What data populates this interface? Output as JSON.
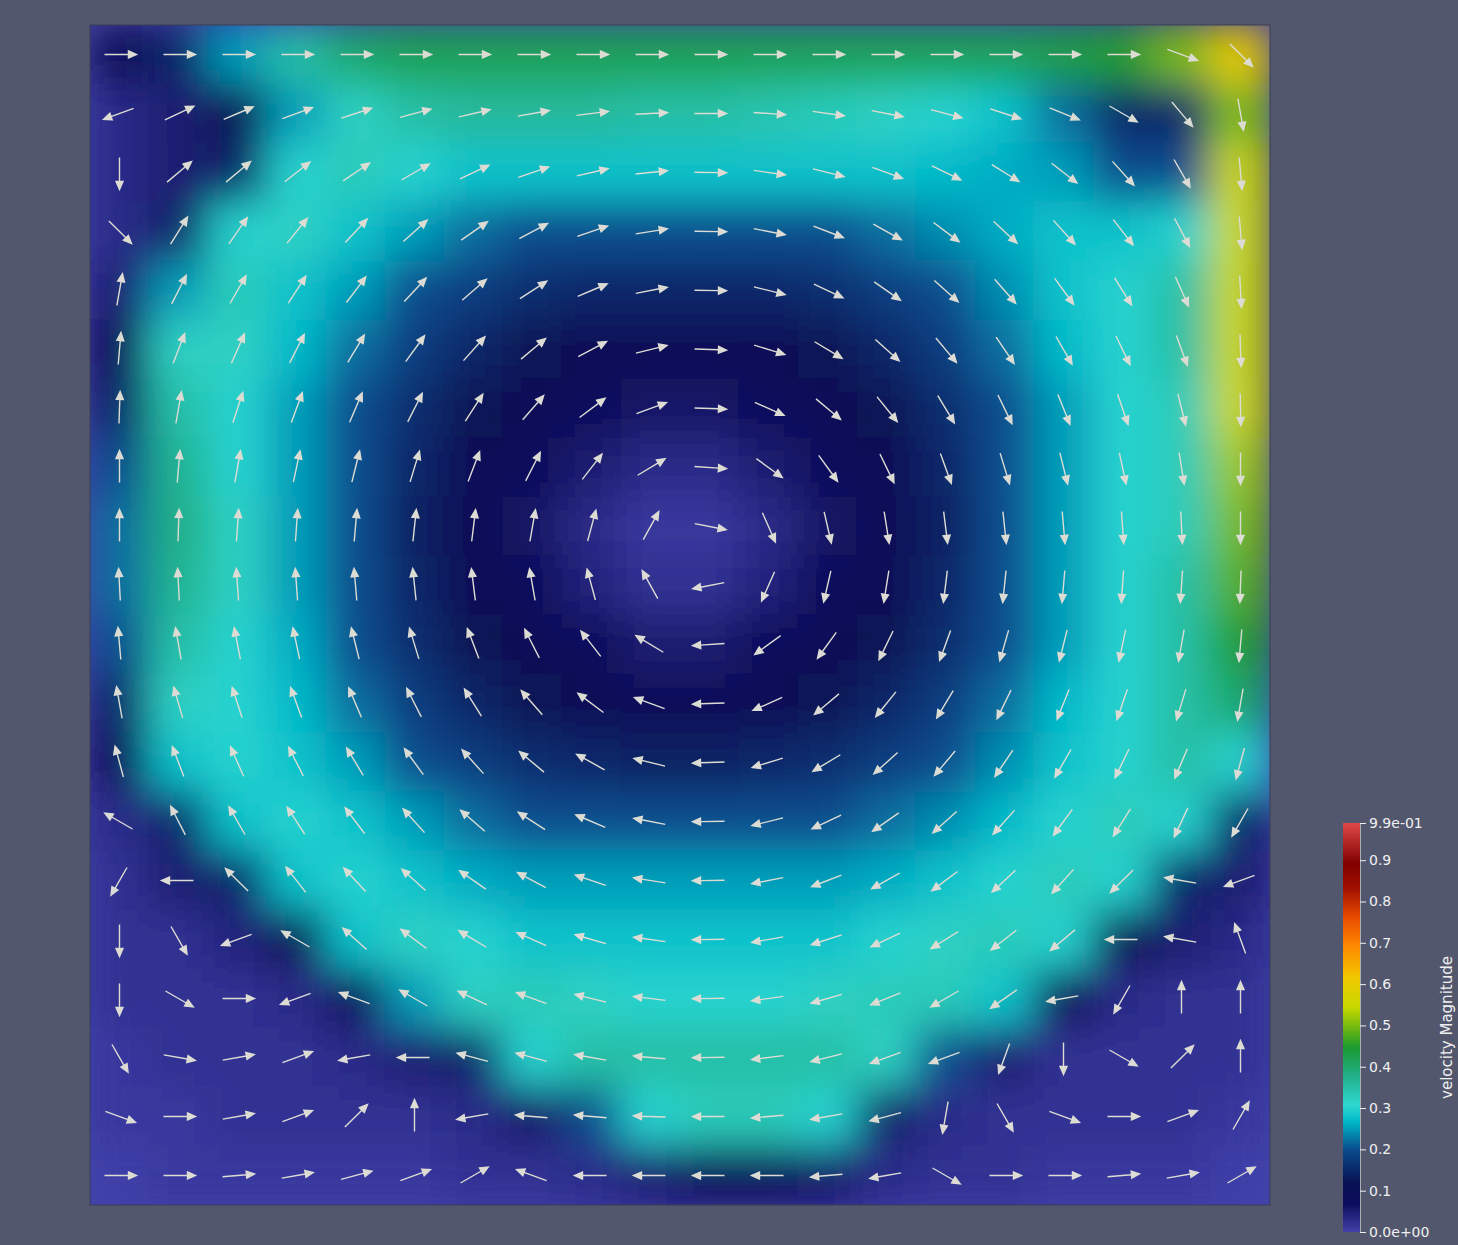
{
  "chart_data": {
    "type": "heatmap_vector",
    "tick_labels": false,
    "xlim": [
      0,
      1
    ],
    "ylim": [
      0,
      1
    ],
    "x": [
      0.025,
      0.075,
      0.125,
      0.175,
      0.225,
      0.275,
      0.325,
      0.375,
      0.425,
      0.475,
      0.525,
      0.575,
      0.625,
      0.675,
      0.725,
      0.775,
      0.825,
      0.875,
      0.925,
      0.975
    ],
    "y": [
      0.975,
      0.925,
      0.875,
      0.825,
      0.775,
      0.725,
      0.675,
      0.625,
      0.575,
      0.525,
      0.475,
      0.425,
      0.375,
      0.325,
      0.275,
      0.225,
      0.175,
      0.125,
      0.075,
      0.025
    ],
    "values": [
      [
        0.1,
        0.15,
        0.25,
        0.35,
        0.4,
        0.42,
        0.42,
        0.42,
        0.42,
        0.42,
        0.42,
        0.42,
        0.42,
        0.42,
        0.42,
        0.42,
        0.43,
        0.45,
        0.5,
        0.6
      ],
      [
        0.03,
        0.05,
        0.12,
        0.25,
        0.32,
        0.35,
        0.36,
        0.36,
        0.36,
        0.35,
        0.35,
        0.34,
        0.33,
        0.32,
        0.3,
        0.28,
        0.22,
        0.15,
        0.15,
        0.5
      ],
      [
        0.03,
        0.05,
        0.15,
        0.3,
        0.33,
        0.3,
        0.28,
        0.28,
        0.28,
        0.28,
        0.28,
        0.28,
        0.28,
        0.28,
        0.27,
        0.26,
        0.25,
        0.2,
        0.2,
        0.55
      ],
      [
        0.03,
        0.15,
        0.3,
        0.32,
        0.28,
        0.25,
        0.22,
        0.2,
        0.2,
        0.2,
        0.2,
        0.2,
        0.2,
        0.22,
        0.24,
        0.26,
        0.28,
        0.28,
        0.3,
        0.55
      ],
      [
        0.05,
        0.25,
        0.33,
        0.28,
        0.25,
        0.2,
        0.18,
        0.16,
        0.15,
        0.15,
        0.15,
        0.15,
        0.16,
        0.18,
        0.2,
        0.24,
        0.28,
        0.3,
        0.35,
        0.55
      ],
      [
        0.1,
        0.32,
        0.32,
        0.27,
        0.22,
        0.18,
        0.15,
        0.12,
        0.1,
        0.1,
        0.1,
        0.1,
        0.12,
        0.15,
        0.18,
        0.22,
        0.27,
        0.3,
        0.35,
        0.55
      ],
      [
        0.15,
        0.35,
        0.3,
        0.25,
        0.2,
        0.16,
        0.12,
        0.09,
        0.07,
        0.06,
        0.06,
        0.07,
        0.09,
        0.12,
        0.16,
        0.2,
        0.25,
        0.3,
        0.33,
        0.55
      ],
      [
        0.2,
        0.37,
        0.3,
        0.25,
        0.2,
        0.15,
        0.1,
        0.07,
        0.05,
        0.03,
        0.03,
        0.05,
        0.07,
        0.1,
        0.15,
        0.2,
        0.25,
        0.3,
        0.33,
        0.52
      ],
      [
        0.22,
        0.38,
        0.32,
        0.25,
        0.2,
        0.14,
        0.1,
        0.06,
        0.03,
        0.01,
        0.01,
        0.03,
        0.06,
        0.1,
        0.14,
        0.2,
        0.25,
        0.3,
        0.33,
        0.5
      ],
      [
        0.22,
        0.37,
        0.32,
        0.25,
        0.2,
        0.15,
        0.1,
        0.07,
        0.04,
        0.02,
        0.02,
        0.04,
        0.07,
        0.1,
        0.15,
        0.2,
        0.25,
        0.3,
        0.35,
        0.48
      ],
      [
        0.2,
        0.35,
        0.3,
        0.26,
        0.2,
        0.16,
        0.12,
        0.09,
        0.07,
        0.05,
        0.05,
        0.07,
        0.09,
        0.12,
        0.16,
        0.2,
        0.25,
        0.3,
        0.35,
        0.45
      ],
      [
        0.15,
        0.32,
        0.3,
        0.27,
        0.22,
        0.18,
        0.15,
        0.12,
        0.1,
        0.09,
        0.09,
        0.1,
        0.12,
        0.15,
        0.18,
        0.22,
        0.27,
        0.3,
        0.35,
        0.4
      ],
      [
        0.08,
        0.28,
        0.3,
        0.28,
        0.25,
        0.2,
        0.18,
        0.16,
        0.15,
        0.14,
        0.14,
        0.15,
        0.16,
        0.18,
        0.2,
        0.24,
        0.28,
        0.3,
        0.35,
        0.3
      ],
      [
        0.03,
        0.15,
        0.28,
        0.3,
        0.28,
        0.25,
        0.22,
        0.2,
        0.2,
        0.2,
        0.2,
        0.2,
        0.2,
        0.22,
        0.24,
        0.27,
        0.3,
        0.33,
        0.3,
        0.15
      ],
      [
        0.02,
        0.05,
        0.15,
        0.28,
        0.3,
        0.28,
        0.26,
        0.25,
        0.25,
        0.25,
        0.25,
        0.25,
        0.25,
        0.26,
        0.28,
        0.3,
        0.33,
        0.3,
        0.15,
        0.05
      ],
      [
        0.02,
        0.02,
        0.04,
        0.12,
        0.28,
        0.32,
        0.3,
        0.28,
        0.28,
        0.28,
        0.28,
        0.28,
        0.28,
        0.3,
        0.32,
        0.33,
        0.3,
        0.12,
        0.05,
        0.03
      ],
      [
        0.02,
        0.02,
        0.02,
        0.03,
        0.08,
        0.25,
        0.32,
        0.33,
        0.32,
        0.3,
        0.3,
        0.3,
        0.32,
        0.33,
        0.33,
        0.28,
        0.1,
        0.03,
        0.02,
        0.02
      ],
      [
        0.01,
        0.02,
        0.02,
        0.02,
        0.03,
        0.05,
        0.15,
        0.3,
        0.35,
        0.35,
        0.35,
        0.35,
        0.35,
        0.32,
        0.2,
        0.05,
        0.02,
        0.02,
        0.02,
        0.02
      ],
      [
        0.01,
        0.01,
        0.02,
        0.02,
        0.02,
        0.02,
        0.03,
        0.06,
        0.2,
        0.3,
        0.33,
        0.33,
        0.3,
        0.15,
        0.03,
        0.02,
        0.02,
        0.02,
        0.02,
        0.01
      ],
      [
        0,
        0.01,
        0.01,
        0.01,
        0.01,
        0.01,
        0.02,
        0.02,
        0.03,
        0.05,
        0.08,
        0.08,
        0.06,
        0.03,
        0.02,
        0.02,
        0.01,
        0.01,
        0.01,
        0
      ]
    ],
    "directions": [
      [
        0,
        0,
        0,
        0,
        0,
        0,
        0,
        0,
        0,
        0,
        0,
        0,
        0,
        0,
        0,
        0,
        0,
        0,
        -20,
        -45
      ],
      [
        -160,
        25,
        23,
        20,
        18,
        15,
        13,
        10,
        7,
        3,
        0,
        -4,
        -8,
        -11,
        -15,
        -18,
        -22,
        -30,
        -50,
        -80
      ],
      [
        -90,
        40,
        40,
        38,
        34,
        30,
        25,
        19,
        13,
        6,
        -1,
        -8,
        -14,
        -20,
        -26,
        -32,
        -38,
        -48,
        -60,
        -85
      ],
      [
        -45,
        58,
        55,
        51,
        47,
        42,
        35,
        28,
        19,
        9,
        -1,
        -11,
        -21,
        -29,
        -37,
        -43,
        -48,
        -52,
        -62,
        -85
      ],
      [
        80,
        63,
        60,
        57,
        53,
        47,
        41,
        33,
        23,
        11,
        -1,
        -14,
        -25,
        -35,
        -42,
        -49,
        -54,
        -58,
        -66,
        -87
      ],
      [
        85,
        69,
        66,
        63,
        59,
        54,
        48,
        40,
        28,
        14,
        -2,
        -17,
        -31,
        -42,
        -50,
        -56,
        -60,
        -64,
        -70,
        -88
      ],
      [
        88,
        80,
        72,
        70,
        67,
        63,
        57,
        49,
        37,
        20,
        -2,
        -24,
        -40,
        -51,
        -59,
        -64,
        -68,
        -71,
        -76,
        -89
      ],
      [
        90,
        85,
        80,
        78,
        76,
        73,
        69,
        63,
        52,
        31,
        -4,
        -36,
        -54,
        -64,
        -70,
        -73,
        -76,
        -78,
        -81,
        -90
      ],
      [
        90,
        88,
        86,
        86,
        85,
        84,
        83,
        80,
        75,
        61,
        -11,
        -66,
        -77,
        -81,
        -83,
        -84,
        -85,
        -86,
        -87,
        -90
      ],
      [
        93,
        93,
        94,
        94,
        95,
        96,
        97,
        100,
        105,
        119,
        -169,
        -114,
        -103,
        -99,
        -97,
        -96,
        -95,
        -94,
        -94,
        -92
      ],
      [
        95,
        100,
        101,
        102,
        104,
        107,
        111,
        117,
        128,
        149,
        -176,
        -144,
        -126,
        -116,
        -110,
        -106,
        -104,
        -102,
        -100,
        -95
      ],
      [
        100,
        106,
        108,
        110,
        113,
        117,
        122,
        131,
        143,
        160,
        -178,
        -156,
        -140,
        -129,
        -121,
        -116,
        -112,
        -109,
        -107,
        -100
      ],
      [
        105,
        111,
        114,
        117,
        121,
        126,
        132,
        140,
        151,
        166,
        -178,
        -163,
        -149,
        -138,
        -130,
        -124,
        -120,
        -116,
        -113,
        -105
      ],
      [
        150,
        117,
        120,
        123,
        127,
        132,
        139,
        147,
        157,
        169,
        -179,
        -166,
        -155,
        -145,
        -138,
        -132,
        -126,
        -122,
        -115,
        -120
      ],
      [
        -120,
        180,
        135,
        128,
        133,
        138,
        145,
        152,
        161,
        171,
        -179,
        -169,
        -159,
        -151,
        -143,
        -137,
        -132,
        -135,
        170,
        -160
      ],
      [
        -90,
        -60,
        -160,
        150,
        138,
        143,
        149,
        156,
        164,
        172,
        -179,
        -170,
        -162,
        -155,
        -148,
        -142,
        -140,
        180,
        170,
        110
      ],
      [
        -90,
        -30,
        0,
        -160,
        160,
        150,
        155,
        160,
        166,
        173,
        -179,
        -172,
        -164,
        -158,
        -150,
        -145,
        -170,
        -120,
        90,
        90
      ],
      [
        -60,
        -10,
        10,
        20,
        -170,
        180,
        165,
        165,
        170,
        175,
        -179,
        -173,
        -166,
        -160,
        -160,
        -110,
        -90,
        -30,
        45,
        90
      ],
      [
        -20,
        0,
        10,
        20,
        45,
        90,
        -170,
        175,
        175,
        178,
        180,
        -175,
        -170,
        -165,
        -100,
        -60,
        -20,
        0,
        20,
        60
      ],
      [
        0,
        0,
        5,
        10,
        15,
        20,
        30,
        160,
        180,
        180,
        180,
        180,
        -175,
        -170,
        -30,
        0,
        0,
        5,
        10,
        30
      ]
    ],
    "colorbar": {
      "title": "velocity Magnitude",
      "range": [
        0,
        0.99
      ],
      "ticks": [
        {
          "value": 0,
          "label": "0.0e+00"
        },
        0.1,
        0.2,
        0.3,
        0.4,
        0.5,
        0.6,
        0.7,
        0.8,
        0.9,
        {
          "value": 0.99,
          "label": "9.9e-01"
        }
      ]
    }
  }
}
